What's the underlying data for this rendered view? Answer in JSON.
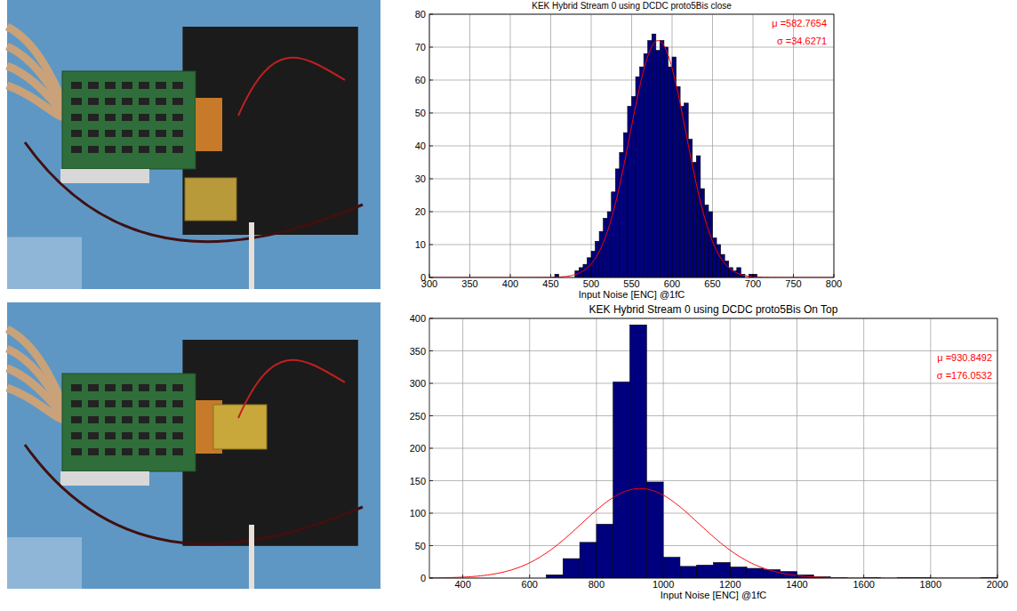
{
  "chart_data": [
    {
      "type": "histogram",
      "title": "KEK Hybrid Stream 0 using DCDC proto5Bis close",
      "x_label": "Input Noise [ENC] @1fC",
      "bins": [
        455,
        460,
        465,
        470,
        475,
        480,
        485,
        490,
        495,
        500,
        505,
        510,
        515,
        520,
        525,
        530,
        535,
        540,
        545,
        550,
        555,
        560,
        565,
        570,
        575,
        580,
        585,
        590,
        595,
        600,
        605,
        610,
        615,
        620,
        625,
        630,
        635,
        640,
        645,
        650,
        655,
        660,
        665,
        670,
        675,
        680,
        685,
        690,
        695,
        700,
        705
      ],
      "values": [
        1,
        0,
        0,
        0,
        0,
        2,
        3,
        4,
        6,
        8,
        11,
        14,
        18,
        20,
        26,
        33,
        38,
        44,
        52,
        55,
        61,
        64,
        68,
        72,
        74,
        69,
        72,
        70,
        64,
        67,
        58,
        52,
        53,
        42,
        35,
        37,
        27,
        22,
        20,
        12,
        10,
        7,
        5,
        3,
        2,
        3,
        1,
        0,
        1,
        1
      ],
      "color": "#00007f",
      "xlim": [
        300,
        800
      ],
      "ylim": [
        0,
        80
      ],
      "xticks": [
        300,
        350,
        400,
        450,
        500,
        550,
        600,
        650,
        700,
        750,
        800
      ],
      "yticks": [
        0,
        10,
        20,
        30,
        40,
        50,
        60,
        70,
        80
      ],
      "grid": true,
      "fit": {
        "mu": 582.7654,
        "sigma": 34.6271,
        "amplitude": 72,
        "color": "#ff0000"
      },
      "annotations": [
        "μ =582.7654",
        "σ =34.6271"
      ]
    },
    {
      "type": "histogram",
      "title": "KEK Hybrid Stream 0 using DCDC proto5Bis On Top",
      "x_label": "Input Noise [ENC] @1fC",
      "bins": [
        650,
        700,
        750,
        800,
        850,
        900,
        950,
        1000,
        1050,
        1100,
        1150,
        1200,
        1250,
        1300,
        1350,
        1400,
        1450,
        1500,
        1550,
        1600,
        1650,
        1700,
        1750,
        1800,
        1850,
        1900,
        1950,
        2000
      ],
      "values": [
        5,
        30,
        55,
        83,
        302,
        390,
        148,
        32,
        18,
        20,
        24,
        17,
        15,
        13,
        10,
        5,
        2,
        1,
        0,
        1,
        0,
        1,
        1,
        0,
        0,
        0,
        1
      ],
      "color": "#00007f",
      "xlim": [
        300,
        2000
      ],
      "ylim": [
        0,
        400
      ],
      "xticks": [
        400,
        600,
        800,
        1000,
        1200,
        1400,
        1600,
        1800,
        2000
      ],
      "yticks": [
        0,
        50,
        100,
        150,
        200,
        250,
        300,
        350,
        400
      ],
      "grid": true,
      "fit": {
        "mu": 930.8492,
        "sigma": 176.0532,
        "amplitude": 138,
        "color": "#ff0000"
      },
      "annotations": [
        "μ =930.8492",
        "σ =176.0532"
      ]
    }
  ]
}
